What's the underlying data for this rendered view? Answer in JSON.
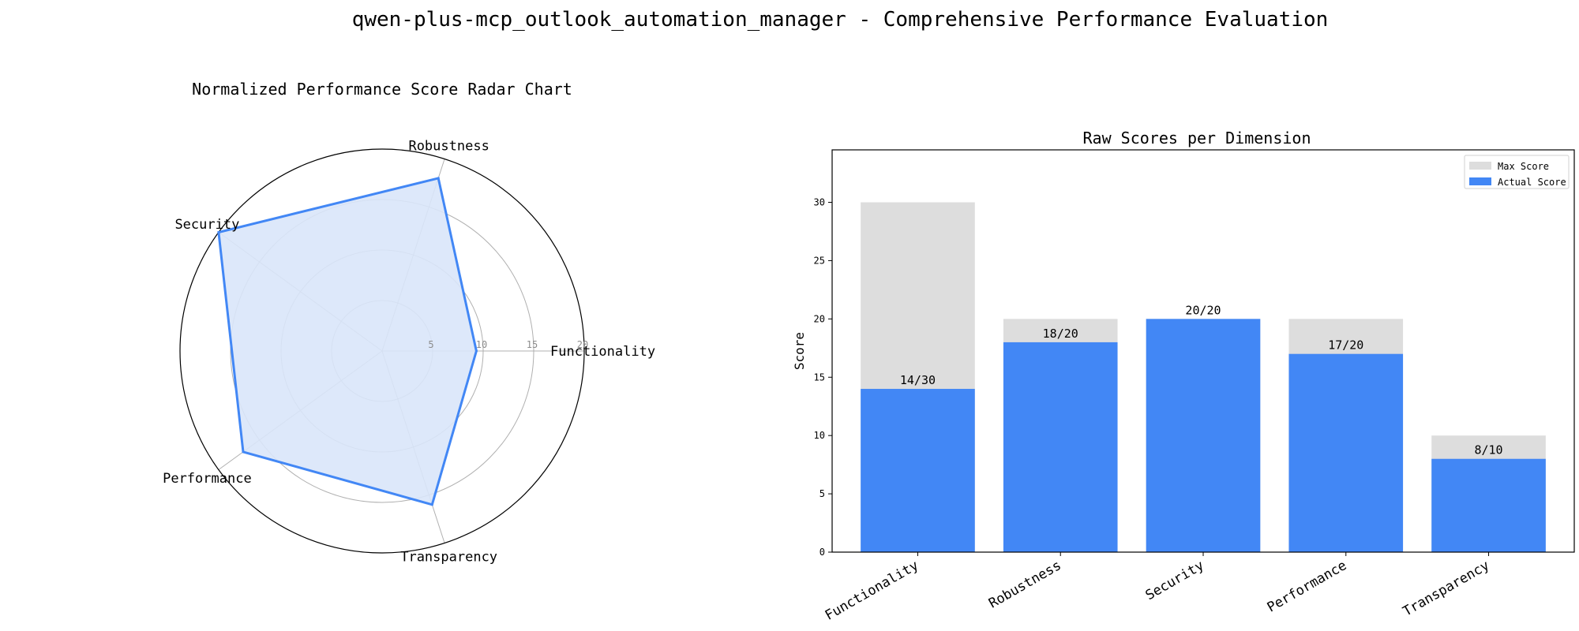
{
  "figure": {
    "title": "qwen-plus-mcp_outlook_automation_manager - Comprehensive Performance Evaluation"
  },
  "colors": {
    "actual": "#4287f5",
    "max": "#dddddd",
    "radar_fill": "#d9e5f9",
    "grid": "#b0b0b0",
    "frame": "#000000"
  },
  "chart_data": [
    {
      "type": "radar",
      "title": "Normalized Performance Score Radar Chart",
      "categories": [
        "Functionality",
        "Robustness",
        "Security",
        "Performance",
        "Transparency"
      ],
      "values": [
        9.33,
        18,
        20,
        17,
        16
      ],
      "rlim": [
        0,
        20
      ],
      "rticks": [
        5,
        10,
        15,
        20
      ],
      "grid": true
    },
    {
      "type": "bar",
      "title": "Raw Scores per Dimension",
      "categories": [
        "Functionality",
        "Robustness",
        "Security",
        "Performance",
        "Transparency"
      ],
      "ylabel": "Score",
      "xlabel": "",
      "ylim": [
        0,
        34.5
      ],
      "yticks": [
        0,
        5,
        10,
        15,
        20,
        25,
        30
      ],
      "series": [
        {
          "name": "Max Score",
          "values": [
            30,
            20,
            20,
            20,
            10
          ]
        },
        {
          "name": "Actual Score",
          "values": [
            14,
            18,
            20,
            17,
            8
          ]
        }
      ],
      "data_labels": [
        "14/30",
        "18/20",
        "20/20",
        "17/20",
        "8/10"
      ],
      "legend": "top-right",
      "grid": false
    }
  ]
}
